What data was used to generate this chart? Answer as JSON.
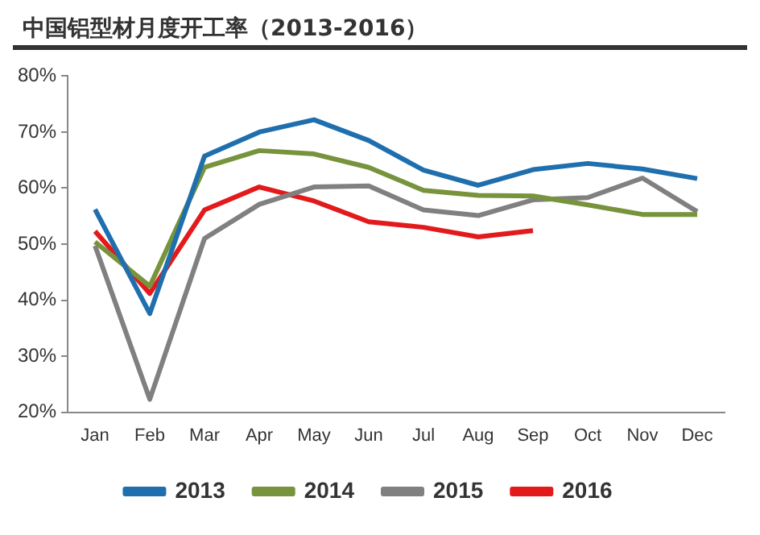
{
  "chart_data": {
    "type": "line",
    "title": "中国铝型材月度开工率（2013-2016）",
    "categories": [
      "Jan",
      "Feb",
      "Mar",
      "Apr",
      "May",
      "Jun",
      "Jul",
      "Aug",
      "Sep",
      "Oct",
      "Nov",
      "Dec"
    ],
    "series": [
      {
        "name": "2013",
        "color": "#1f6fae",
        "values": [
          56.2,
          37.6,
          65.7,
          70,
          72.2,
          68.5,
          63.2,
          60.5,
          63.3,
          64.4,
          63.4,
          61.7
        ]
      },
      {
        "name": "2014",
        "color": "#77933c",
        "values": [
          50.4,
          42.5,
          63.7,
          66.7,
          66.1,
          63.7,
          59.6,
          58.7,
          58.6,
          57,
          55.3,
          55.3
        ]
      },
      {
        "name": "2015",
        "color": "#808080",
        "values": [
          49.7,
          22.3,
          51,
          57.1,
          60.2,
          60.4,
          56.1,
          55.1,
          57.9,
          58.3,
          61.8,
          55.8
        ]
      },
      {
        "name": "2016",
        "color": "#e31a1c",
        "values": [
          52.3,
          41.2,
          56.1,
          60.2,
          57.7,
          54,
          53,
          51.3,
          52.4,
          null,
          null,
          null
        ]
      }
    ],
    "ylim": [
      20,
      80
    ],
    "yticks": [
      {
        "value": 20,
        "label": "20%"
      },
      {
        "value": 30,
        "label": "30%"
      },
      {
        "value": 40,
        "label": "40%"
      },
      {
        "value": 50,
        "label": "50%"
      },
      {
        "value": 60,
        "label": "60%"
      },
      {
        "value": 70,
        "label": "70%"
      },
      {
        "value": 80,
        "label": "80%"
      }
    ],
    "grid": false,
    "legend": "bottom",
    "marker": "none",
    "line_style": "solid"
  }
}
